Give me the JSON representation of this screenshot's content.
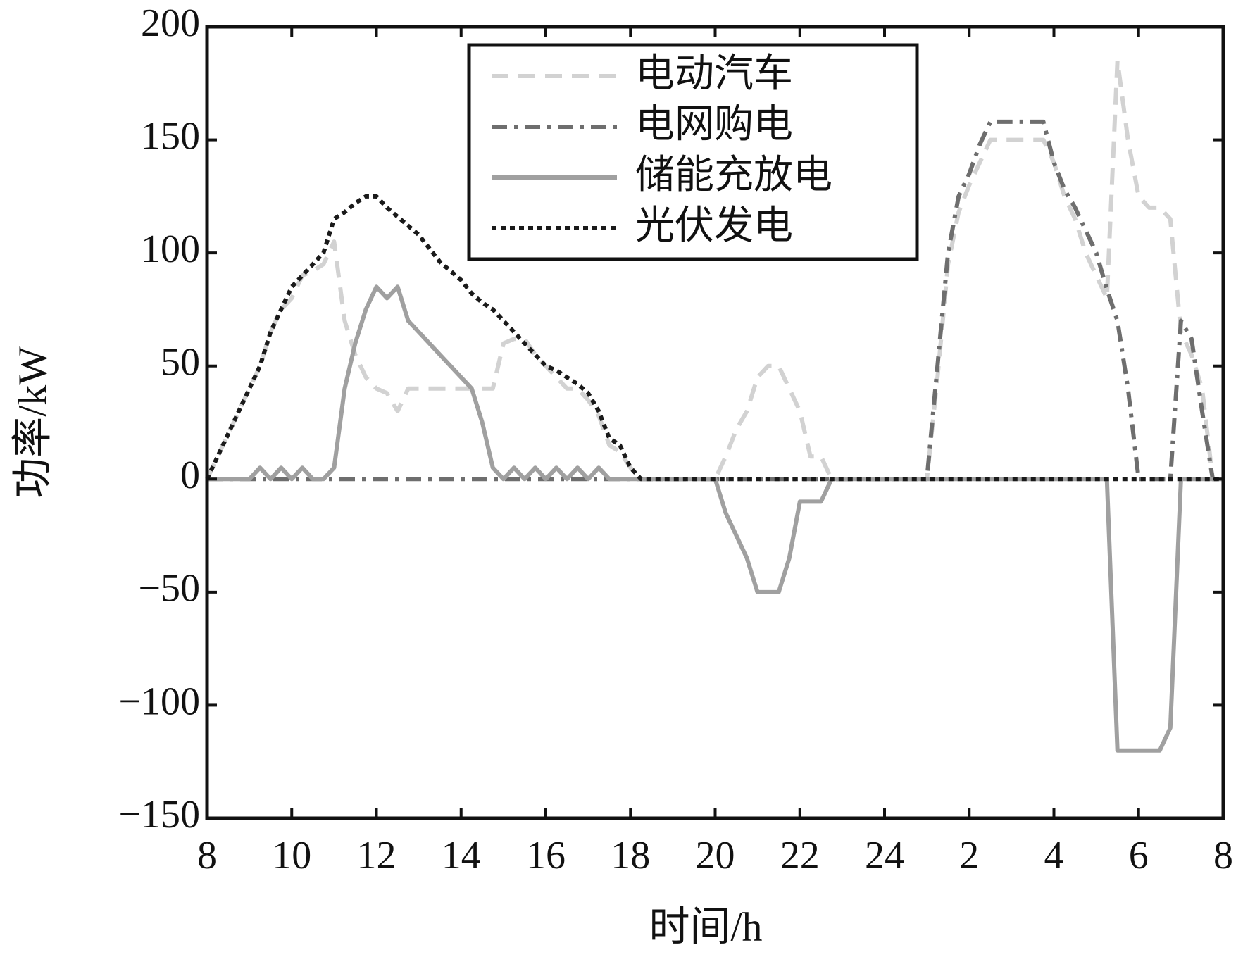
{
  "chart_data": {
    "type": "line",
    "xlabel": "时间/h",
    "ylabel": "功率/kW",
    "xlim": [
      8,
      32
    ],
    "ylim": [
      -150,
      200
    ],
    "xticks": [
      8,
      10,
      12,
      14,
      16,
      18,
      20,
      22,
      24,
      {
        "value": 26,
        "label": "2"
      },
      {
        "value": 28,
        "label": "4"
      },
      {
        "value": 30,
        "label": "6"
      },
      {
        "value": 32,
        "label": "8"
      }
    ],
    "yticks": [
      {
        "value": -150,
        "label": "−150"
      },
      {
        "value": -100,
        "label": "−100"
      },
      {
        "value": -50,
        "label": "−50"
      },
      0,
      50,
      100,
      150,
      200
    ],
    "grid": false,
    "legend": "top-center",
    "x": [
      8,
      8.25,
      8.5,
      8.75,
      9,
      9.25,
      9.5,
      9.75,
      10,
      10.25,
      10.5,
      10.75,
      11,
      11.25,
      11.5,
      11.75,
      12,
      12.25,
      12.5,
      12.75,
      13,
      13.25,
      13.5,
      13.75,
      14,
      14.25,
      14.5,
      14.75,
      15,
      15.25,
      15.5,
      15.75,
      16,
      16.25,
      16.5,
      16.75,
      17,
      17.25,
      17.5,
      17.75,
      18,
      18.25,
      18.5,
      18.75,
      19,
      19.25,
      19.5,
      19.75,
      20,
      20.25,
      20.5,
      20.75,
      21,
      21.25,
      21.5,
      21.75,
      22,
      22.25,
      22.5,
      22.75,
      23,
      23.25,
      23.5,
      23.75,
      24,
      24.25,
      24.5,
      24.75,
      25,
      25.25,
      25.5,
      25.75,
      26,
      26.25,
      26.5,
      26.75,
      27,
      27.25,
      27.5,
      27.75,
      28,
      28.25,
      28.5,
      28.75,
      29,
      29.25,
      29.5,
      29.75,
      30,
      30.25,
      30.5,
      30.75,
      31,
      31.25,
      31.5,
      31.75,
      32
    ],
    "series": [
      {
        "name": "电动汽车",
        "color": "#d2d2d2",
        "style": "dashed",
        "values": [
          0,
          10,
          20,
          30,
          40,
          50,
          65,
          75,
          80,
          90,
          92,
          95,
          105,
          70,
          55,
          45,
          40,
          38,
          30,
          40,
          40,
          40,
          40,
          40,
          40,
          40,
          40,
          40,
          60,
          62,
          62,
          55,
          50,
          45,
          40,
          40,
          35,
          28,
          15,
          12,
          5,
          0,
          0,
          0,
          0,
          0,
          0,
          0,
          0,
          10,
          22,
          30,
          45,
          50,
          50,
          40,
          30,
          10,
          10,
          0,
          0,
          0,
          0,
          0,
          0,
          0,
          0,
          0,
          0,
          45,
          95,
          118,
          130,
          140,
          150,
          150,
          150,
          150,
          150,
          150,
          140,
          125,
          115,
          100,
          90,
          80,
          185,
          150,
          125,
          120,
          120,
          115,
          65,
          55,
          40,
          0,
          0
        ]
      },
      {
        "name": "电网购电",
        "color": "#6e6e6e",
        "style": "dashdot",
        "values": [
          0,
          0,
          0,
          0,
          0,
          0,
          0,
          0,
          0,
          0,
          0,
          0,
          0,
          0,
          0,
          0,
          0,
          0,
          0,
          0,
          0,
          0,
          0,
          0,
          0,
          0,
          0,
          0,
          0,
          0,
          0,
          0,
          0,
          0,
          0,
          0,
          0,
          0,
          0,
          0,
          0,
          0,
          0,
          0,
          0,
          0,
          0,
          0,
          0,
          0,
          0,
          0,
          0,
          0,
          0,
          0,
          0,
          0,
          0,
          0,
          0,
          0,
          0,
          0,
          0,
          0,
          0,
          0,
          0,
          50,
          100,
          125,
          135,
          148,
          158,
          158,
          158,
          158,
          158,
          158,
          140,
          128,
          120,
          110,
          100,
          84,
          70,
          40,
          0,
          0,
          0,
          0,
          70,
          62,
          30,
          0,
          0
        ]
      },
      {
        "name": "储能充放电",
        "color": "#a0a0a0",
        "style": "solid",
        "values": [
          0,
          0,
          0,
          0,
          0,
          5,
          0,
          5,
          0,
          5,
          0,
          0,
          5,
          40,
          60,
          75,
          85,
          80,
          85,
          70,
          65,
          60,
          55,
          50,
          45,
          40,
          25,
          5,
          0,
          5,
          0,
          5,
          0,
          5,
          0,
          5,
          0,
          5,
          0,
          0,
          0,
          0,
          0,
          0,
          0,
          0,
          0,
          0,
          0,
          -15,
          -25,
          -35,
          -50,
          -50,
          -50,
          -35,
          -10,
          -10,
          -10,
          0,
          0,
          0,
          0,
          0,
          0,
          0,
          0,
          0,
          0,
          0,
          0,
          0,
          0,
          0,
          0,
          0,
          0,
          0,
          0,
          0,
          0,
          0,
          0,
          0,
          0,
          0,
          -120,
          -120,
          -120,
          -120,
          -120,
          -110,
          0,
          0,
          0,
          0,
          0
        ]
      },
      {
        "name": "光伏发电",
        "color": "#1a1a1a",
        "style": "dotted",
        "values": [
          0,
          10,
          20,
          30,
          40,
          50,
          65,
          75,
          85,
          90,
          95,
          100,
          115,
          118,
          122,
          125,
          125,
          120,
          116,
          112,
          108,
          102,
          96,
          92,
          88,
          82,
          78,
          75,
          70,
          65,
          60,
          55,
          50,
          48,
          45,
          42,
          38,
          30,
          18,
          15,
          5,
          0,
          0,
          0,
          0,
          0,
          0,
          0,
          0,
          0,
          0,
          0,
          0,
          0,
          0,
          0,
          0,
          0,
          0,
          0,
          0,
          0,
          0,
          0,
          0,
          0,
          0,
          0,
          0,
          0,
          0,
          0,
          0,
          0,
          0,
          0,
          0,
          0,
          0,
          0,
          0,
          0,
          0,
          0,
          0,
          0,
          0,
          0,
          0,
          0,
          0,
          0,
          0,
          0,
          0,
          0,
          0
        ]
      }
    ]
  }
}
